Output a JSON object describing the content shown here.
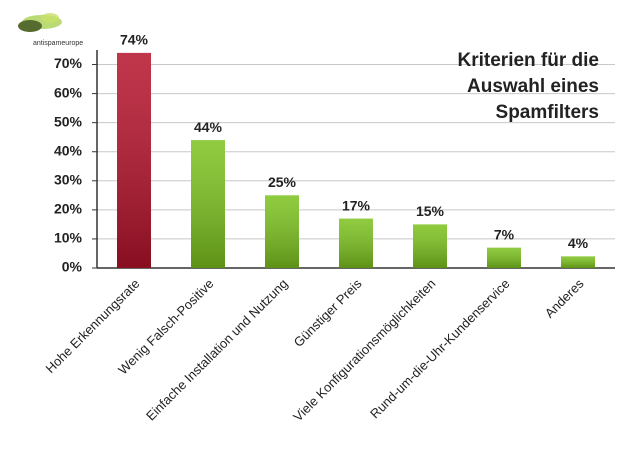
{
  "chart_data": {
    "type": "bar",
    "title": "Kriterien für die Auswahl eines Spamfilters",
    "logo_text": "antispameurope",
    "categories": [
      "Hohe Erkennungsrate",
      "Wenig Falsch-Positive",
      "Einfache Installation und Nutzung",
      "Günstiger Preis",
      "Viele Konfigurationsmöglichkeiten",
      "Rund-um-die-Uhr-Kundenservice",
      "Anderes"
    ],
    "values": [
      74,
      44,
      25,
      17,
      15,
      7,
      4
    ],
    "value_labels": [
      "74%",
      "44%",
      "25%",
      "17%",
      "15%",
      "7%",
      "4%"
    ],
    "colors": [
      "#b5122b",
      "#7cc21e",
      "#7cc21e",
      "#7cc21e",
      "#7cc21e",
      "#7cc21e",
      "#7cc21e"
    ],
    "ylim": [
      0,
      75
    ],
    "yticks": [
      {
        "value": 0,
        "label": "0%"
      },
      {
        "value": 10,
        "label": "10%"
      },
      {
        "value": 20,
        "label": "20%"
      },
      {
        "value": 30,
        "label": "30%"
      },
      {
        "value": 40,
        "label": "40%"
      },
      {
        "value": 50,
        "label": "50%"
      },
      {
        "value": 60,
        "label": "60%"
      },
      {
        "value": 70,
        "label": "70%"
      }
    ],
    "grid": true
  }
}
